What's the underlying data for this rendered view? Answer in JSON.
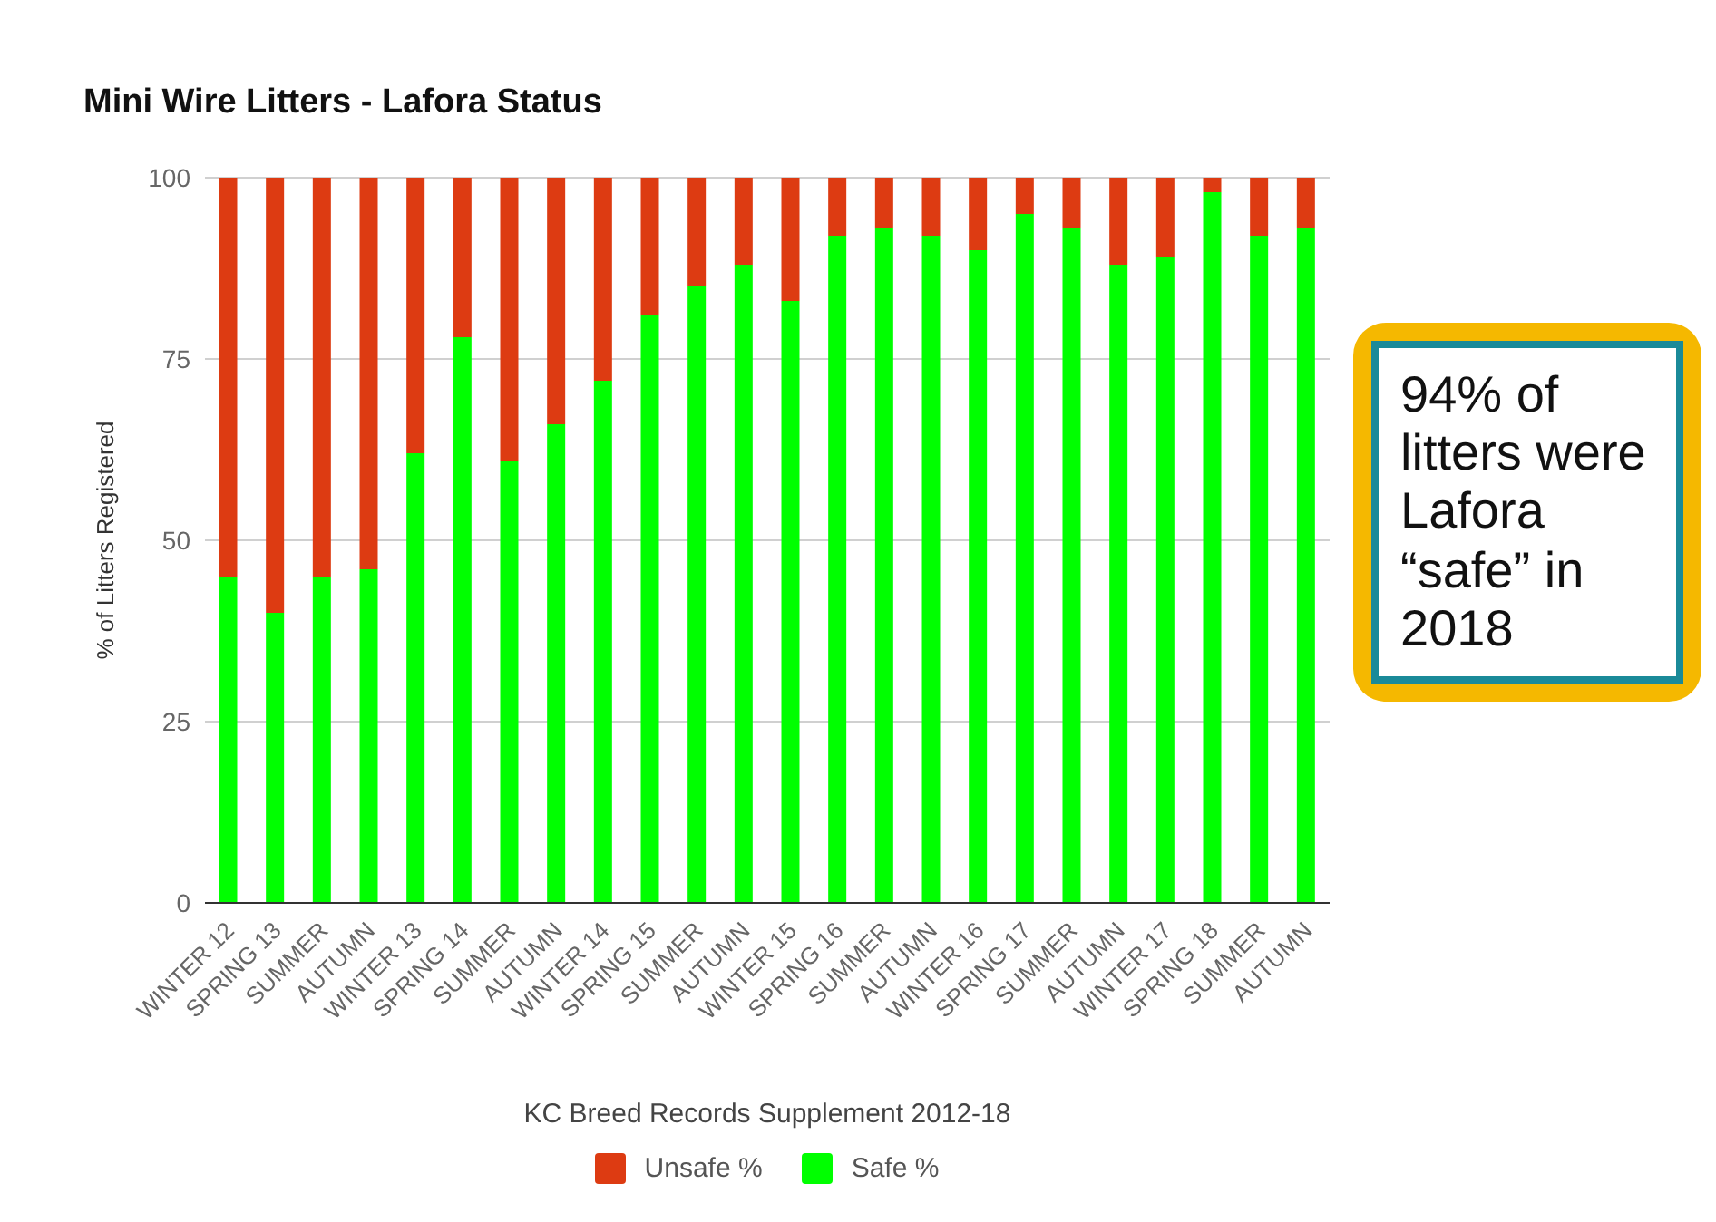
{
  "chart_data": {
    "type": "bar",
    "title": "Mini Wire Litters - Lafora Status",
    "xlabel": "KC Breed Records Supplement 2012-18",
    "ylabel": "% of Litters Registered",
    "categories": [
      "WINTER 12",
      "SPRING 13",
      "SUMMER",
      "AUTUMN",
      "WINTER 13",
      "SPRING 14",
      "SUMMER",
      "AUTUMN",
      "WINTER 14",
      "SPRING 15",
      "SUMMER",
      "AUTUMN",
      "WINTER 15",
      "SPRING 16",
      "SUMMER",
      "AUTUMN",
      "WINTER 16",
      "SPRING 17",
      "SUMMER",
      "AUTUMN",
      "WINTER 17",
      "SPRING 18",
      "SUMMER",
      "AUTUMN"
    ],
    "stacked": true,
    "series": [
      {
        "name": "Safe %",
        "color": "#00ff00",
        "values": [
          45,
          40,
          45,
          46,
          62,
          78,
          61,
          66,
          72,
          81,
          85,
          88,
          83,
          92,
          93,
          92,
          90,
          95,
          93,
          88,
          89,
          98,
          92,
          93
        ]
      },
      {
        "name": "Unsafe %",
        "color": "#dd3b12",
        "values": [
          55,
          60,
          55,
          54,
          38,
          22,
          39,
          34,
          28,
          19,
          15,
          12,
          17,
          8,
          7,
          8,
          10,
          5,
          7,
          12,
          11,
          2,
          8,
          7
        ]
      }
    ],
    "ylim": [
      0,
      100
    ],
    "yticks": [
      0,
      25,
      50,
      75,
      100
    ],
    "grid": "y",
    "legend": "bottom",
    "annotations": [
      "94% of litters were Lafora “safe” in 2018"
    ]
  }
}
